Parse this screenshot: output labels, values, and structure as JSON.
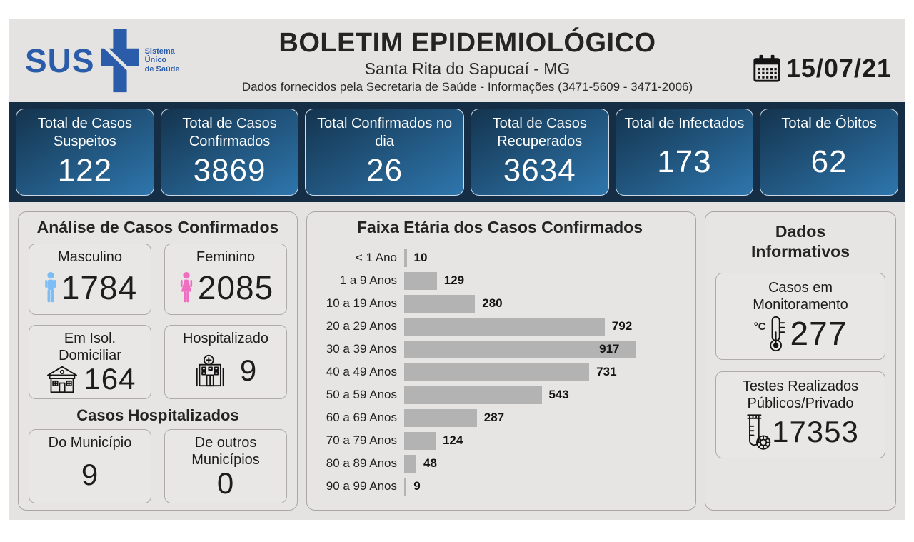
{
  "theme": {
    "page_bg": "#ffffff",
    "board_bg": "#e5e3e2",
    "band_bg": "#152e46",
    "card_gradient_start": "#14344e",
    "card_gradient_end": "#2e76ad",
    "sus_blue": "#2b5ca9",
    "male_color": "#7cbdf5",
    "female_color": "#f06ec2",
    "bar_color": "#b3b3b3"
  },
  "header": {
    "logo": {
      "wordmark": "SUS",
      "tagline_lines": [
        "Sistema",
        "Único",
        "de Saúde"
      ]
    },
    "title": "BOLETIM EPIDEMIOLÓGICO",
    "subtitle": "Santa Rita do Sapucaí - MG",
    "info_line": "Dados fornecidos pela Secretaria de Saúde - Informações (3471-5609 - 3471-2006)",
    "date": "15/07/21"
  },
  "summary_cards": [
    {
      "label": "Total de Casos Suspeitos",
      "value": "122"
    },
    {
      "label": "Total de Casos Confirmados",
      "value": "3869"
    },
    {
      "label": "Total Confirmados no dia",
      "value": "26"
    },
    {
      "label": "Total de Casos Recuperados",
      "value": "3634"
    },
    {
      "label": "Total de Infectados",
      "value": "173"
    },
    {
      "label": "Total de Óbitos",
      "value": "62"
    }
  ],
  "analysis_panel": {
    "title": "Análise de Casos Confirmados",
    "cards": [
      {
        "label": "Masculino",
        "value": "1784",
        "icon": "male-icon"
      },
      {
        "label": "Feminino",
        "value": "2085",
        "icon": "female-icon"
      },
      {
        "label": "Em Isol. Domiciliar",
        "value": "164",
        "icon": "house-icon"
      },
      {
        "label": "Hospitalizado",
        "value": "9",
        "icon": "hospital-icon"
      }
    ],
    "hospitalized_section": {
      "title": "Casos Hospitalizados",
      "cards": [
        {
          "label": "Do Município",
          "value": "9"
        },
        {
          "label": "De outros Municípios",
          "value": "0"
        }
      ]
    }
  },
  "chart_data": {
    "type": "bar",
    "orientation": "horizontal",
    "title": "Faixa Etária dos Casos Confirmados",
    "categories": [
      "< 1 Ano",
      "1 a 9 Anos",
      "10 a 19 Anos",
      "20 a 29 Anos",
      "30 a 39 Anos",
      "40 a 49 Anos",
      "50 a 59 Anos",
      "60 a 69 Anos",
      "70 a 79 Anos",
      "80 a 89 Anos",
      "90 a 99 Anos"
    ],
    "values": [
      10,
      129,
      280,
      792,
      917,
      731,
      543,
      287,
      124,
      48,
      9
    ],
    "bar_color": "#b3b3b3",
    "xlim": [
      0,
      1100
    ],
    "grid": false,
    "legend": false,
    "value_labels": true
  },
  "info_panel": {
    "title": "Dados Informativos",
    "cards": [
      {
        "label": "Casos em Monitoramento",
        "value": "277",
        "icon": "thermometer-icon"
      },
      {
        "label": "Testes Realizados Públicos/Privado",
        "value": "17353",
        "icon": "test-tube-icon"
      }
    ]
  }
}
